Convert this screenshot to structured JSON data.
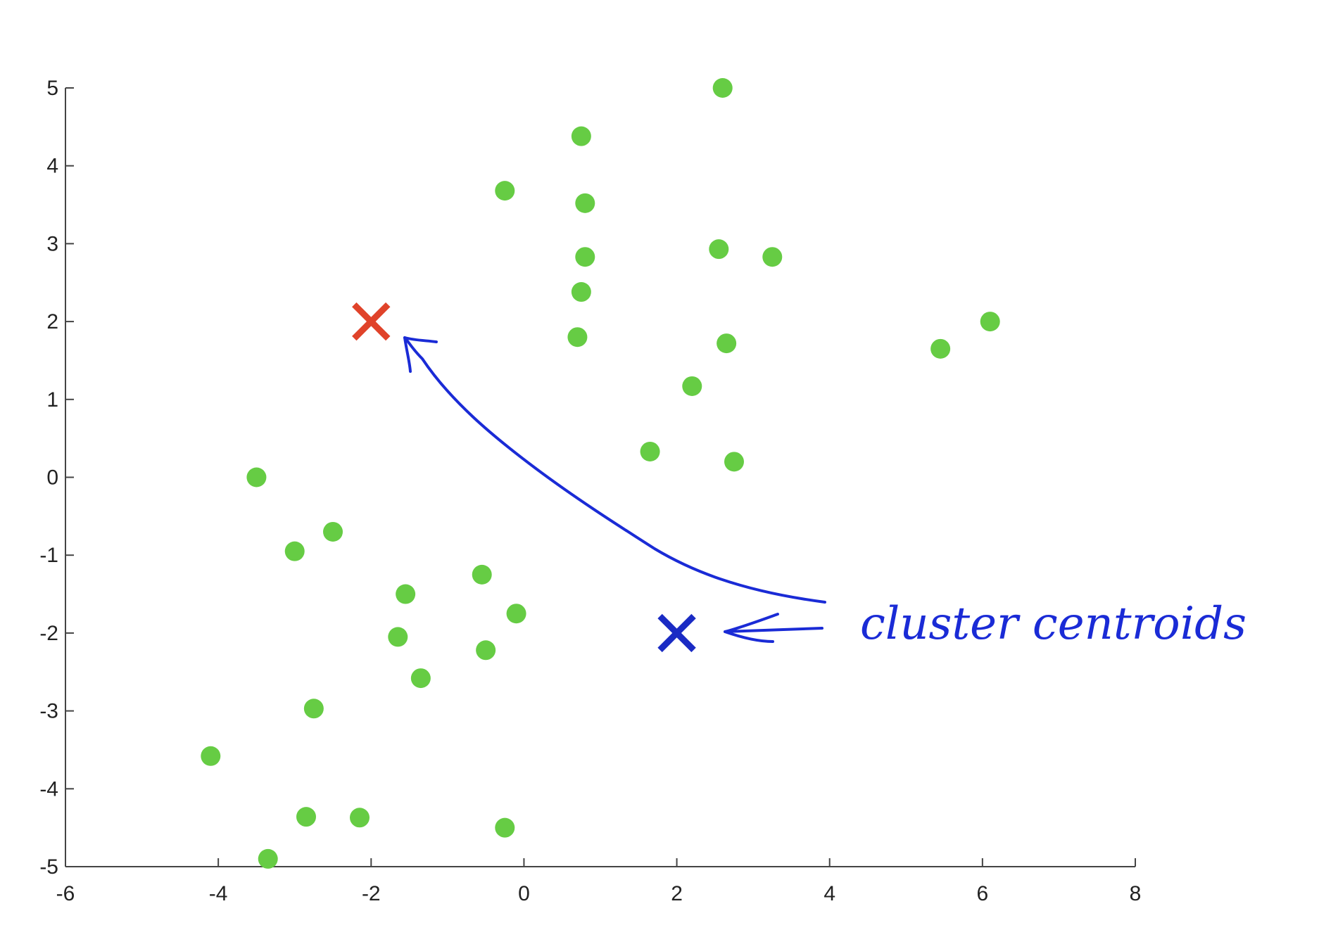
{
  "chart_data": {
    "type": "scatter",
    "xlim": [
      -6,
      8
    ],
    "ylim": [
      -5,
      5
    ],
    "xticks": [
      -6,
      -4,
      -2,
      0,
      2,
      4,
      6,
      8
    ],
    "yticks": [
      5,
      4,
      3,
      2,
      1,
      0,
      -1,
      -2,
      -3,
      -4,
      -5
    ],
    "grid": false,
    "points": [
      [
        2.6,
        5.0
      ],
      [
        0.75,
        4.38
      ],
      [
        -0.25,
        3.68
      ],
      [
        0.8,
        3.52
      ],
      [
        0.8,
        2.83
      ],
      [
        2.55,
        2.93
      ],
      [
        3.25,
        2.83
      ],
      [
        0.75,
        2.38
      ],
      [
        0.7,
        1.8
      ],
      [
        2.65,
        1.72
      ],
      [
        5.45,
        1.65
      ],
      [
        6.1,
        2.0
      ],
      [
        2.2,
        1.17
      ],
      [
        1.65,
        0.33
      ],
      [
        2.75,
        0.2
      ],
      [
        -3.5,
        0.0
      ],
      [
        -2.5,
        -0.7
      ],
      [
        -3.0,
        -0.95
      ],
      [
        -0.55,
        -1.25
      ],
      [
        -1.55,
        -1.5
      ],
      [
        -0.1,
        -1.75
      ],
      [
        -1.65,
        -2.05
      ],
      [
        -0.5,
        -2.22
      ],
      [
        -1.35,
        -2.58
      ],
      [
        -2.75,
        -2.97
      ],
      [
        -4.1,
        -3.58
      ],
      [
        -2.85,
        -4.36
      ],
      [
        -2.15,
        -4.37
      ],
      [
        -0.25,
        -4.5
      ],
      [
        -3.35,
        -4.9
      ]
    ],
    "centroids": [
      {
        "x": -2,
        "y": 2,
        "color": "#e0432a"
      },
      {
        "x": 2,
        "y": -2,
        "color": "#1a2bc4"
      }
    ],
    "point_color": "#66cc44",
    "annotation": {
      "text": "cluster centroids",
      "color": "#1a2bd6"
    }
  }
}
